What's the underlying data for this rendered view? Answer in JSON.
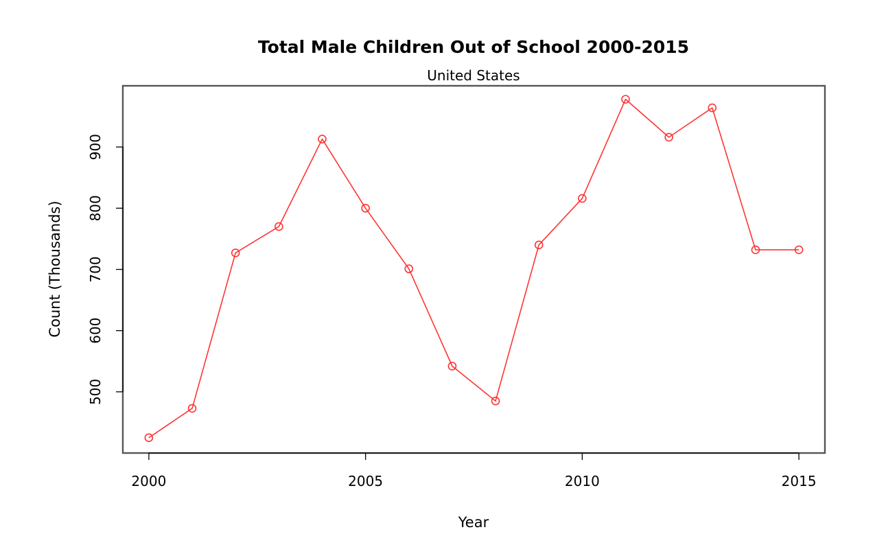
{
  "chart_data": {
    "type": "line",
    "title": "Total Male Children Out of School 2000-2015",
    "subtitle": "United States",
    "xlabel": "Year",
    "ylabel": "Count (Thousands)",
    "x": [
      2000,
      2001,
      2002,
      2003,
      2004,
      2005,
      2006,
      2007,
      2008,
      2009,
      2010,
      2011,
      2012,
      2013,
      2014,
      2015
    ],
    "series": [
      {
        "values": [
          425,
          473,
          727,
          770,
          913,
          800,
          701,
          542,
          485,
          740,
          816,
          978,
          916,
          964,
          732,
          732
        ],
        "color": "#ff3333",
        "marker": "open-circle"
      }
    ],
    "x_ticks": [
      "2000",
      "2005",
      "2010",
      "2015"
    ],
    "y_ticks": [
      "500",
      "600",
      "700",
      "800",
      "900"
    ],
    "xlim": [
      1999.4,
      2015.6
    ],
    "ylim": [
      400,
      1000
    ],
    "grid": false,
    "legend": "none"
  }
}
